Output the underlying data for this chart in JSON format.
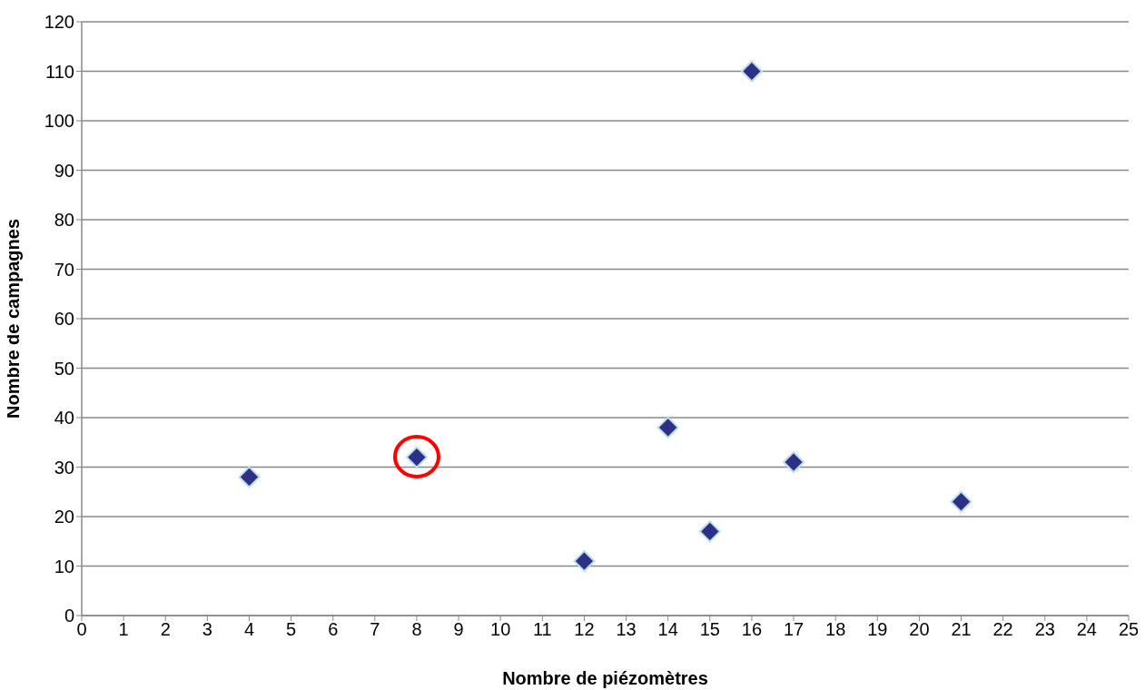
{
  "chart_data": {
    "type": "scatter",
    "xlabel": "Nombre de piézomètres",
    "ylabel": "Nombre de campagnes",
    "x": [
      4,
      8,
      12,
      14,
      15,
      16,
      17,
      21
    ],
    "series": [
      {
        "color": "#2e3087",
        "values": [
          28,
          32,
          11,
          38,
          17,
          110,
          31,
          23
        ]
      }
    ],
    "xlim": [
      0,
      25
    ],
    "xticks": [
      0,
      1,
      2,
      3,
      4,
      5,
      6,
      7,
      8,
      9,
      10,
      11,
      12,
      13,
      14,
      15,
      16,
      17,
      18,
      19,
      20,
      21,
      22,
      23,
      24,
      25
    ],
    "ylim": [
      0,
      120
    ],
    "yticks": [
      0,
      10,
      20,
      30,
      40,
      50,
      60,
      70,
      80,
      90,
      100,
      110,
      120
    ],
    "grid": "y",
    "marker": "diamond",
    "legend": false
  }
}
